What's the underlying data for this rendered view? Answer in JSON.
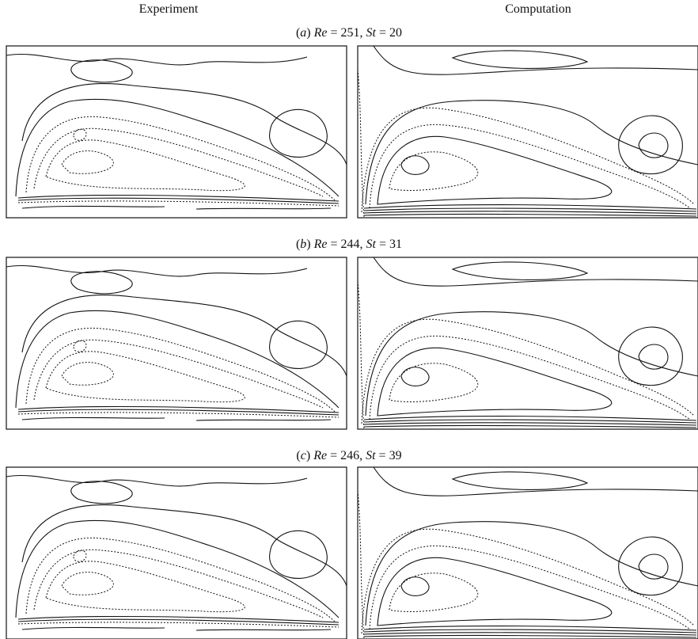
{
  "columns": [
    "Experiment",
    "Computation"
  ],
  "rows": [
    {
      "label": [
        {
          "text": "(",
          "italic": false
        },
        {
          "text": "a",
          "italic": true
        },
        {
          "text": ") ",
          "italic": false
        },
        {
          "text": "Re",
          "italic": true
        },
        {
          "text": " = 251, ",
          "italic": false
        },
        {
          "text": "St",
          "italic": true
        },
        {
          "text": " = 20",
          "italic": false
        }
      ]
    },
    {
      "label": [
        {
          "text": "(",
          "italic": false
        },
        {
          "text": "b",
          "italic": true
        },
        {
          "text": ") ",
          "italic": false
        },
        {
          "text": "Re",
          "italic": true
        },
        {
          "text": " = 244, ",
          "italic": false
        },
        {
          "text": "St",
          "italic": true
        },
        {
          "text": " = 31",
          "italic": false
        }
      ]
    },
    {
      "label": [
        {
          "text": "(",
          "italic": false
        },
        {
          "text": "c",
          "italic": true
        },
        {
          "text": ") ",
          "italic": false
        },
        {
          "text": "Re",
          "italic": true
        },
        {
          "text": " = 246, ",
          "italic": false
        },
        {
          "text": "St",
          "italic": true
        },
        {
          "text": " = 39",
          "italic": false
        }
      ]
    }
  ]
}
